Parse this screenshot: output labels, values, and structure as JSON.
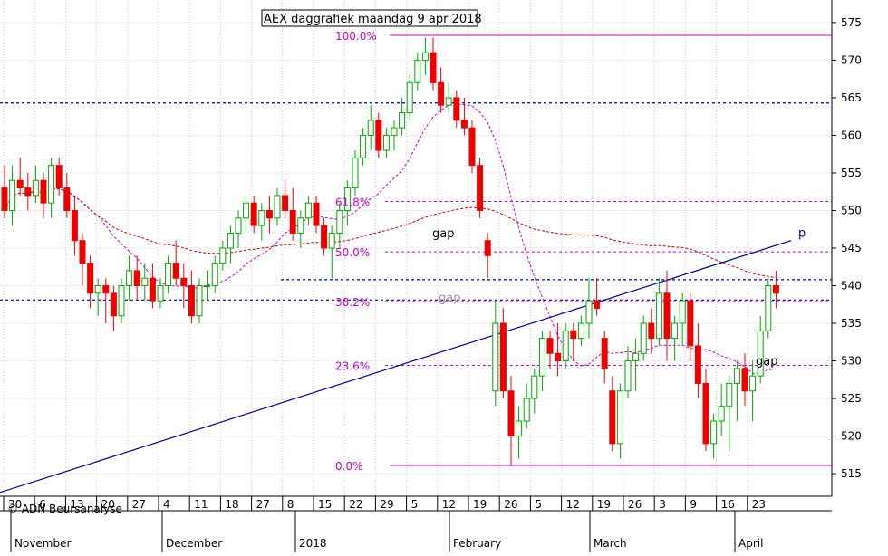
{
  "chart_data": {
    "type": "candlestick",
    "title": "AEX daggrafiek maandag 9 apr 2018",
    "watermark": "© ADN Beursanalyse",
    "ylim": [
      512,
      578
    ],
    "y_ticks": [
      515,
      520,
      525,
      530,
      535,
      540,
      545,
      550,
      555,
      560,
      565,
      570,
      575
    ],
    "x_tick_labels": [
      "30",
      "6",
      "13",
      "20",
      "27",
      "4",
      "11",
      "18",
      "27",
      "8",
      "15",
      "22",
      "29",
      "5",
      "12",
      "19",
      "26",
      "5",
      "12",
      "19",
      "26",
      "3",
      "9",
      "16",
      "23"
    ],
    "month_labels": [
      "November",
      "December",
      "2018",
      "February",
      "March",
      "April"
    ],
    "colors": {
      "up": "#00aa00",
      "down": "#ee0000",
      "fib": "#cc00cc",
      "level": "#000099",
      "trend": "#000099",
      "ma_short": "#cc00cc",
      "ma_long": "#cc0000",
      "up_fill": "#ffffff"
    },
    "fibonacci": [
      {
        "label": "100.0%",
        "value": 573.3
      },
      {
        "label": "61.8%",
        "value": 551.2
      },
      {
        "label": "50.0%",
        "value": 544.5
      },
      {
        "label": "38.2%",
        "value": 537.9
      },
      {
        "label": "23.6%",
        "value": 529.4
      },
      {
        "label": "0.0%",
        "value": 516.1
      }
    ],
    "levels": [
      564.3,
      540.8,
      538.1
    ],
    "trendline_label": "p",
    "annotations": [
      "gap",
      "gap",
      "gap"
    ],
    "candles": [
      [
        553,
        556,
        549,
        550
      ],
      [
        550,
        556,
        548,
        554
      ],
      [
        554,
        557,
        552,
        553
      ],
      [
        553,
        555,
        550,
        552
      ],
      [
        552,
        556,
        551,
        554
      ],
      [
        554,
        555,
        549,
        551
      ],
      [
        551,
        557,
        549,
        556
      ],
      [
        556,
        557,
        552,
        553
      ],
      [
        553,
        555,
        549,
        550
      ],
      [
        550,
        552,
        544,
        546
      ],
      [
        546,
        547,
        540,
        543
      ],
      [
        543,
        544,
        537,
        539
      ],
      [
        539,
        541,
        536,
        540
      ],
      [
        540,
        541,
        535,
        539
      ],
      [
        539,
        540,
        534,
        536
      ],
      [
        536,
        541,
        535,
        540
      ],
      [
        540,
        544,
        538,
        542
      ],
      [
        542,
        544,
        538,
        540
      ],
      [
        540,
        543,
        538,
        541
      ],
      [
        541,
        543,
        537,
        538
      ],
      [
        538,
        541,
        537,
        540
      ],
      [
        540,
        544,
        539,
        543
      ],
      [
        543,
        546,
        540,
        541
      ],
      [
        541,
        543,
        537,
        540
      ],
      [
        540,
        542,
        535,
        536
      ],
      [
        536,
        541,
        535,
        540
      ],
      [
        540,
        542,
        538,
        540
      ],
      [
        540,
        544,
        539,
        543
      ],
      [
        543,
        546,
        542,
        545
      ],
      [
        545,
        548,
        543,
        547
      ],
      [
        547,
        550,
        545,
        549
      ],
      [
        549,
        552,
        547,
        551
      ],
      [
        551,
        552,
        547,
        548
      ],
      [
        548,
        551,
        546,
        550
      ],
      [
        550,
        552,
        547,
        549
      ],
      [
        549,
        553,
        548,
        552
      ],
      [
        552,
        554,
        549,
        550
      ],
      [
        550,
        553,
        546,
        547
      ],
      [
        547,
        550,
        545,
        549
      ],
      [
        549,
        552,
        548,
        551
      ],
      [
        551,
        552,
        547,
        548
      ],
      [
        548,
        549,
        544,
        545
      ],
      [
        545,
        548,
        541,
        547
      ],
      [
        547,
        551,
        545,
        550
      ],
      [
        550,
        554,
        548,
        553
      ],
      [
        553,
        558,
        552,
        557
      ],
      [
        557,
        561,
        556,
        560
      ],
      [
        560,
        564,
        558,
        562
      ],
      [
        562,
        563,
        557,
        558
      ],
      [
        558,
        561,
        557,
        560
      ],
      [
        560,
        562,
        558,
        561
      ],
      [
        561,
        565,
        560,
        563
      ],
      [
        563,
        568,
        562,
        567
      ],
      [
        567,
        571,
        566,
        570
      ],
      [
        570,
        573,
        568,
        571
      ],
      [
        571,
        573,
        566,
        567
      ],
      [
        567,
        569,
        563,
        564
      ],
      [
        564,
        567,
        563,
        565
      ],
      [
        565,
        566,
        561,
        562
      ],
      [
        562,
        565,
        560,
        561
      ],
      [
        561,
        562,
        555,
        556
      ],
      [
        556,
        557,
        549,
        550
      ],
      [
        546,
        547,
        541,
        544
      ],
      [
        526,
        538,
        524,
        535
      ],
      [
        535,
        537,
        525,
        526
      ],
      [
        526,
        528,
        516,
        520
      ],
      [
        520,
        524,
        517,
        522
      ],
      [
        522,
        527,
        521,
        525
      ],
      [
        525,
        529,
        523,
        528
      ],
      [
        528,
        534,
        526,
        533
      ],
      [
        533,
        534,
        529,
        531
      ],
      [
        531,
        535,
        528,
        530
      ],
      [
        530,
        535,
        529,
        534
      ],
      [
        534,
        535,
        530,
        533
      ],
      [
        533,
        536,
        532,
        535
      ],
      [
        535,
        541,
        533,
        538
      ],
      [
        538,
        541,
        536,
        537
      ],
      [
        533,
        534,
        527,
        529
      ],
      [
        526,
        528,
        518,
        519
      ],
      [
        519,
        527,
        517,
        526
      ],
      [
        526,
        532,
        525,
        530
      ],
      [
        530,
        533,
        526,
        531
      ],
      [
        531,
        536,
        530,
        535
      ],
      [
        535,
        537,
        531,
        533
      ],
      [
        533,
        541,
        532,
        539
      ],
      [
        539,
        542,
        530,
        533
      ],
      [
        533,
        536,
        530,
        535
      ],
      [
        535,
        539,
        532,
        538
      ],
      [
        538,
        539,
        530,
        532
      ],
      [
        532,
        535,
        525,
        527
      ],
      [
        527,
        529,
        518,
        519
      ],
      [
        519,
        523,
        517,
        522
      ],
      [
        522,
        527,
        520,
        524
      ],
      [
        524,
        528,
        518,
        527
      ],
      [
        527,
        530,
        522,
        529
      ],
      [
        529,
        531,
        524,
        526
      ],
      [
        526,
        530,
        522,
        528
      ],
      [
        528,
        536,
        527,
        534
      ],
      [
        534,
        541,
        533,
        540
      ],
      [
        540,
        542,
        537,
        539
      ]
    ]
  }
}
